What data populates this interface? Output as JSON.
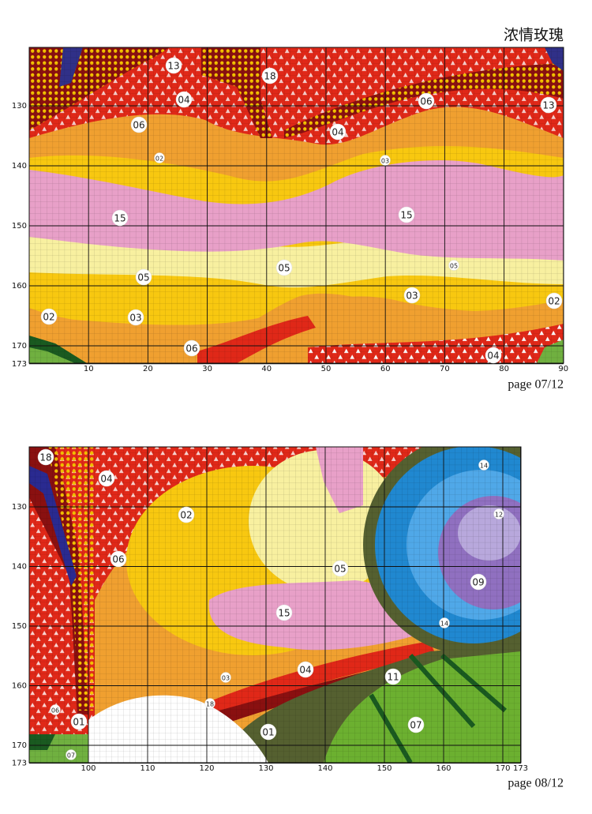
{
  "title": "浓情玫瑰",
  "pages": [
    {
      "page_label": "page 07/12",
      "row_labels": [
        130,
        140,
        150,
        160,
        170,
        173
      ],
      "col_labels": [
        10,
        20,
        30,
        40,
        50,
        60,
        70,
        80,
        90
      ],
      "symbols": [
        "13",
        "18",
        "04",
        "06",
        "13",
        "06",
        "04",
        "02",
        "03",
        "15",
        "15",
        "05",
        "05",
        "05",
        "03",
        "02",
        "02",
        "03",
        "06",
        "04"
      ]
    },
    {
      "page_label": "page 08/12",
      "row_labels": [
        130,
        140,
        150,
        160,
        170,
        173
      ],
      "col_labels": [
        100,
        110,
        120,
        130,
        140,
        150,
        160,
        170,
        173
      ],
      "symbols": [
        "18",
        "04",
        "14",
        "02",
        "12",
        "06",
        "05",
        "09",
        "15",
        "14",
        "04",
        "03",
        "11",
        "18",
        "06",
        "01",
        "01",
        "07",
        "07"
      ]
    }
  ]
}
